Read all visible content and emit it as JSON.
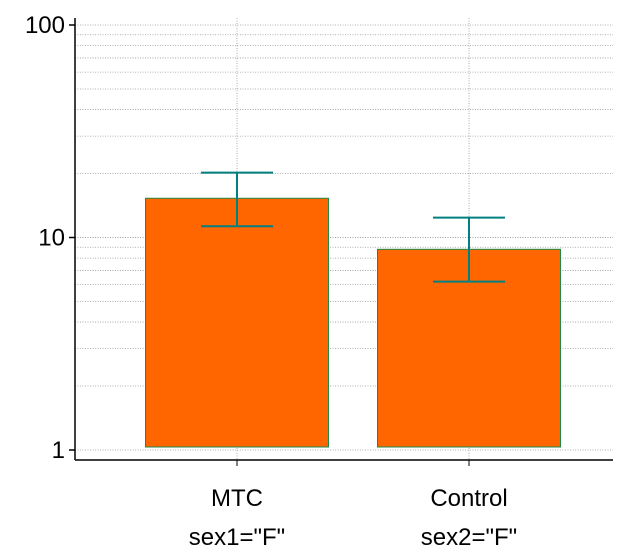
{
  "chart_data": {
    "type": "bar",
    "scale": "log",
    "ylim": [
      1,
      100
    ],
    "y_ticks": [
      1,
      10,
      100
    ],
    "y_tick_labels": [
      "1",
      "10",
      "100"
    ],
    "grid": true,
    "categories": [
      {
        "label": "MTC",
        "sublabel": "sex1=\"F\""
      },
      {
        "label": "Control",
        "sublabel": "sex2=\"F\""
      }
    ],
    "values": [
      15.3,
      8.8
    ],
    "error_low": [
      11.3,
      6.2
    ],
    "error_high": [
      20.2,
      12.4
    ],
    "colors": {
      "bar_fill": "#FF6600",
      "bar_stroke": "#1E8A4A",
      "error_bar": "#008080",
      "grid": "#999999",
      "axis": "#000000"
    }
  }
}
